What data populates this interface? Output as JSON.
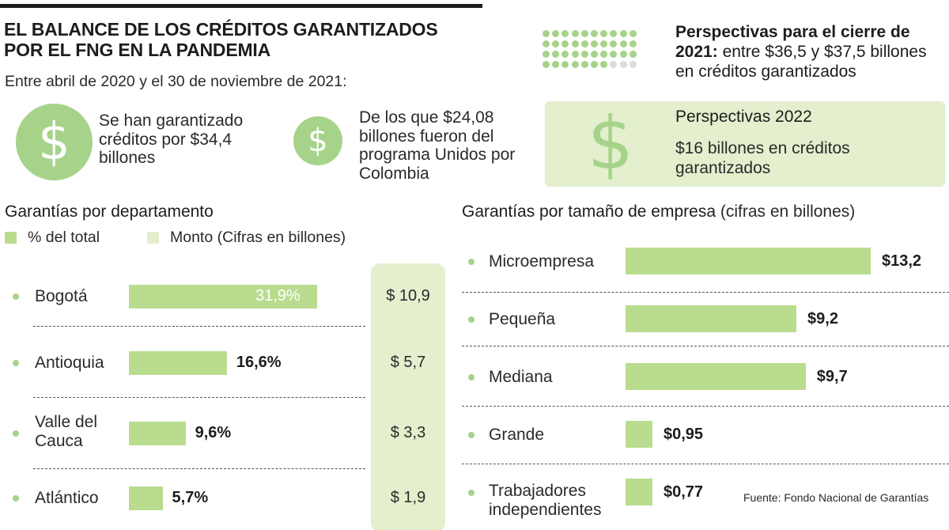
{
  "header": {
    "title_line1": "EL BALANCE DE LOS CRÉDITOS GARANTIZADOS",
    "title_line2": "POR EL FNG EN LA PANDEMIA",
    "subtitle": "Entre abril de 2020 y el 30 de noviembre de 2021:"
  },
  "stats": {
    "guaranteed": "Se han garantizado créditos por $34,4 billones",
    "unidos": "De los que $24,08 billones fueron del programa Unidos por Colombia",
    "coin_symbol": "$"
  },
  "perspectives": {
    "close_bold": "Perspectivas para el cierre de 2021:",
    "close_text": "entre $36,5 y $37,5 billones en créditos garantizados",
    "dots_total": 40,
    "dots_filled": 37,
    "box_title": "Perspectivas 2022",
    "box_text": "$16 billones en créditos garantizados",
    "box_symbol": "$"
  },
  "colors": {
    "bar": "#b9dc8f",
    "coin": "#a6d389",
    "light": "#e3efcd",
    "text": "#1d1d1b"
  },
  "chart_data": [
    {
      "type": "bar",
      "title": "Garantías por departamento",
      "legend": [
        "% del total",
        "Monto (Cifras en billones)"
      ],
      "categories": [
        "Bogotá",
        "Antioquia",
        "Valle del Cauca",
        "Atlántico"
      ],
      "series": [
        {
          "name": "% del total",
          "values": [
            31.9,
            16.6,
            9.6,
            5.7
          ],
          "labels": [
            "31,9%",
            "16,6%",
            "9,6%",
            "5,7%"
          ]
        },
        {
          "name": "Monto (Cifras en billones)",
          "values": [
            10.9,
            5.7,
            3.3,
            1.9
          ],
          "labels": [
            "$ 10,9",
            "$ 5,7",
            "$ 3,3",
            "$ 1,9"
          ]
        }
      ],
      "xlim": [
        0,
        40
      ]
    },
    {
      "type": "bar",
      "title": "Garantías por tamaño de empresa",
      "title_note": "(cifras en billones)",
      "categories": [
        "Microempresa",
        "Pequeña",
        "Mediana",
        "Grande",
        "Trabajadores independientes"
      ],
      "values": [
        13.2,
        9.2,
        9.7,
        0.95,
        0.77
      ],
      "labels": [
        "$13,2",
        "$9,2",
        "$9,7",
        "$0,95",
        "$0,77"
      ],
      "xlim": [
        0,
        14
      ]
    }
  ],
  "source": "Fuente: Fondo Nacional de Garantías"
}
